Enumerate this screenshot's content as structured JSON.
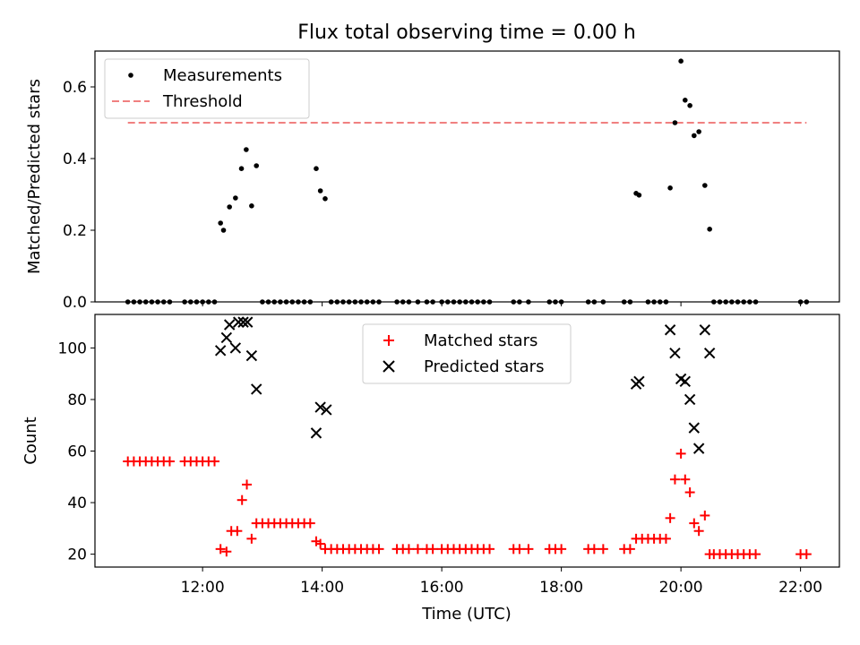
{
  "title": "Flux total observing time = 0.00 h",
  "colors": {
    "measurement": "#000000",
    "threshold": "#f08080",
    "matched": "#ff0000",
    "predicted": "#000000"
  },
  "chart_data": [
    {
      "type": "scatter",
      "ylabel": "Matched/Predicted stars",
      "ylim": [
        0,
        0.7
      ],
      "yticks": [
        "0.0",
        "0.2",
        "0.4",
        "0.6"
      ],
      "ytick_values": [
        0,
        0.2,
        0.4,
        0.6
      ],
      "xlim": [
        10.2,
        22.65
      ],
      "legend": {
        "position": "top-left",
        "entries": [
          "Measurements",
          "Threshold"
        ]
      },
      "threshold": {
        "y": 0.5,
        "x": [
          10.75,
          22.1
        ]
      },
      "series": [
        {
          "name": "Measurements",
          "marker": "dot",
          "x": [
            10.75,
            10.85,
            10.95,
            11.05,
            11.15,
            11.25,
            11.35,
            11.45,
            11.7,
            11.8,
            11.9,
            12.0,
            12.1,
            12.2,
            12.3,
            12.35,
            12.45,
            12.55,
            12.65,
            12.73,
            12.82,
            12.9,
            13.0,
            13.1,
            13.2,
            13.3,
            13.4,
            13.5,
            13.6,
            13.7,
            13.8,
            13.9,
            13.97,
            14.05,
            14.15,
            14.25,
            14.35,
            14.45,
            14.55,
            14.65,
            14.75,
            14.85,
            14.95,
            15.25,
            15.35,
            15.45,
            15.6,
            15.75,
            15.85,
            16.0,
            16.1,
            16.2,
            16.3,
            16.4,
            16.5,
            16.6,
            16.7,
            16.8,
            17.2,
            17.3,
            17.45,
            17.8,
            17.9,
            18.0,
            18.45,
            18.55,
            18.7,
            19.05,
            19.15,
            19.25,
            19.3,
            19.45,
            19.55,
            19.65,
            19.75,
            19.82,
            19.9,
            20.0,
            20.07,
            20.15,
            20.22,
            20.3,
            20.4,
            20.48,
            20.55,
            20.65,
            20.75,
            20.85,
            20.95,
            21.05,
            21.15,
            21.25,
            22.0,
            22.1
          ],
          "y": [
            0,
            0,
            0,
            0,
            0,
            0,
            0,
            0,
            0,
            0,
            0,
            0,
            0,
            0,
            0.22,
            0.2,
            0.265,
            0.29,
            0.372,
            0.425,
            0.268,
            0.38,
            0,
            0,
            0,
            0,
            0,
            0,
            0,
            0,
            0,
            0.372,
            0.31,
            0.288,
            0,
            0,
            0,
            0,
            0,
            0,
            0,
            0,
            0,
            0,
            0,
            0,
            0,
            0,
            0,
            0,
            0,
            0,
            0,
            0,
            0,
            0,
            0,
            0,
            0,
            0,
            0,
            0,
            0,
            0,
            0,
            0,
            0,
            0,
            0,
            0.303,
            0.298,
            0,
            0,
            0,
            0,
            0.318,
            0.5,
            0.672,
            0.563,
            0.548,
            0.464,
            0.475,
            0.325,
            0.203,
            0,
            0,
            0,
            0,
            0,
            0,
            0,
            0,
            0,
            0
          ]
        }
      ]
    },
    {
      "type": "scatter",
      "xlabel": "Time (UTC)",
      "ylabel": "Count",
      "ylim": [
        15,
        113
      ],
      "yticks": [
        "20",
        "40",
        "60",
        "80",
        "100"
      ],
      "ytick_values": [
        20,
        40,
        60,
        80,
        100
      ],
      "xlim": [
        10.2,
        22.65
      ],
      "xticks": [
        "12:00",
        "14:00",
        "16:00",
        "18:00",
        "20:00",
        "22:00"
      ],
      "xtick_values": [
        12,
        14,
        16,
        18,
        20,
        22
      ],
      "legend": {
        "position": "top-center",
        "entries": [
          "Matched stars",
          "Predicted stars"
        ]
      },
      "series": [
        {
          "name": "Matched stars",
          "marker": "plus",
          "x": [
            10.75,
            10.85,
            10.95,
            11.05,
            11.15,
            11.25,
            11.35,
            11.45,
            11.7,
            11.8,
            11.9,
            12.0,
            12.1,
            12.2,
            12.3,
            12.4,
            12.48,
            12.58,
            12.66,
            12.74,
            12.82,
            12.9,
            13.0,
            13.1,
            13.2,
            13.3,
            13.4,
            13.5,
            13.6,
            13.7,
            13.8,
            13.9,
            13.97,
            14.05,
            14.15,
            14.25,
            14.35,
            14.45,
            14.55,
            14.65,
            14.75,
            14.85,
            14.95,
            15.25,
            15.35,
            15.45,
            15.6,
            15.75,
            15.85,
            16.0,
            16.1,
            16.2,
            16.3,
            16.4,
            16.5,
            16.6,
            16.7,
            16.8,
            17.2,
            17.3,
            17.45,
            17.8,
            17.9,
            18.0,
            18.45,
            18.55,
            18.7,
            19.05,
            19.15,
            19.25,
            19.35,
            19.45,
            19.55,
            19.65,
            19.75,
            19.82,
            19.9,
            20.0,
            20.07,
            20.15,
            20.22,
            20.3,
            20.4,
            20.48,
            20.55,
            20.65,
            20.75,
            20.85,
            20.95,
            21.05,
            21.15,
            21.25,
            22.0,
            22.1
          ],
          "y": [
            56,
            56,
            56,
            56,
            56,
            56,
            56,
            56,
            56,
            56,
            56,
            56,
            56,
            56,
            22,
            21,
            29,
            29,
            41,
            47,
            26,
            32,
            32,
            32,
            32,
            32,
            32,
            32,
            32,
            32,
            32,
            25,
            24,
            22,
            22,
            22,
            22,
            22,
            22,
            22,
            22,
            22,
            22,
            22,
            22,
            22,
            22,
            22,
            22,
            22,
            22,
            22,
            22,
            22,
            22,
            22,
            22,
            22,
            22,
            22,
            22,
            22,
            22,
            22,
            22,
            22,
            22,
            22,
            22,
            26,
            26,
            26,
            26,
            26,
            26,
            34,
            49,
            59,
            49,
            44,
            32,
            29,
            35,
            20,
            20,
            20,
            20,
            20,
            20,
            20,
            20,
            20,
            20,
            20
          ]
        },
        {
          "name": "Predicted stars",
          "marker": "x",
          "x": [
            12.3,
            12.4,
            12.45,
            12.55,
            12.6,
            12.68,
            12.75,
            12.82,
            12.9,
            13.9,
            13.97,
            14.07,
            19.25,
            19.3,
            19.82,
            19.9,
            20.0,
            20.07,
            20.15,
            20.22,
            20.3,
            20.4,
            20.48
          ],
          "y": [
            99,
            104,
            109,
            100,
            110,
            110,
            110,
            97,
            84,
            67,
            77,
            76,
            86,
            87,
            107,
            98,
            88,
            87,
            80,
            69,
            61,
            107,
            98
          ]
        }
      ]
    }
  ]
}
